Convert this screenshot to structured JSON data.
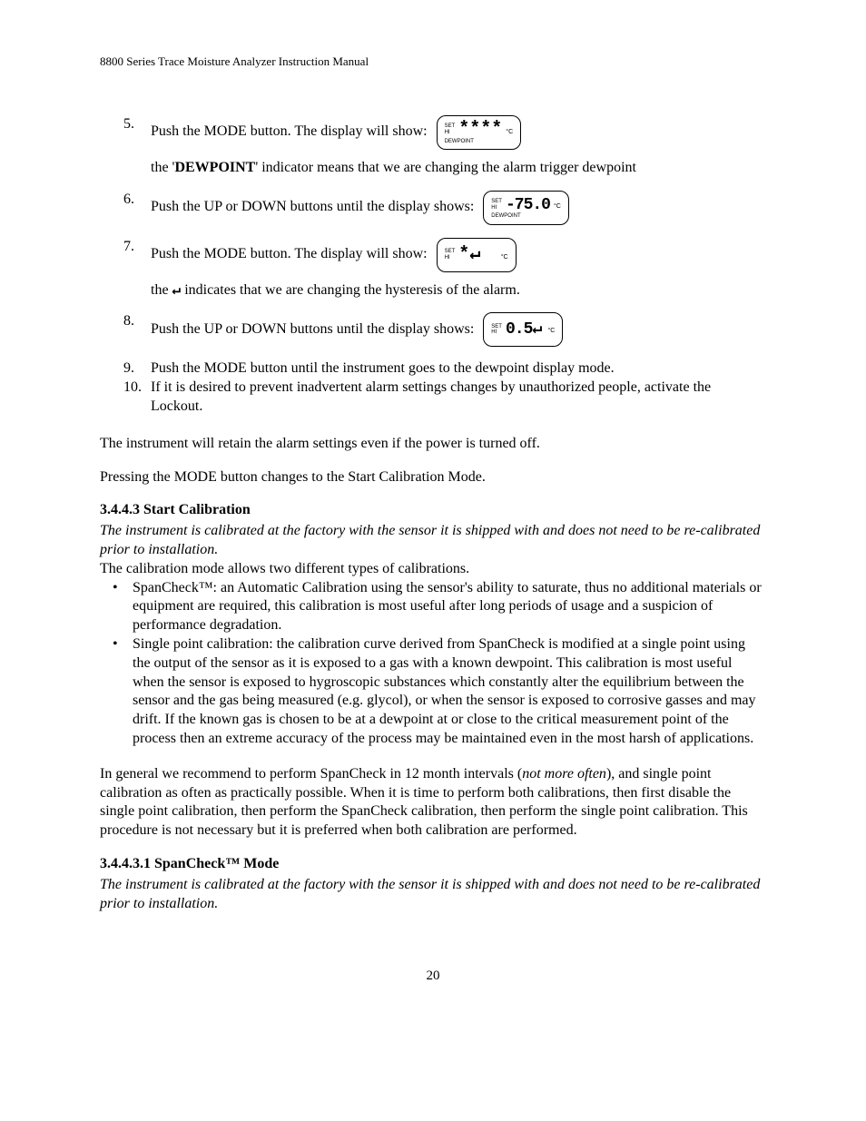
{
  "header": "8800 Series Trace Moisture Analyzer Instruction Manual",
  "steps": [
    {
      "num": "5.",
      "pre": "Push the MODE button. The display will show:",
      "lcd": {
        "set": "SET",
        "hi": "HI",
        "main": "****",
        "unit": "°C",
        "bottom": "DEWPOINT"
      },
      "after_html": "the '<b>DEWPOINT</b>' indicator means that we are changing the alarm trigger dewpoint"
    },
    {
      "num": "6.",
      "pre": "Push the UP or DOWN buttons until the display shows:",
      "lcd": {
        "set": "SET",
        "hi": "HI",
        "main": "-75.0",
        "unit": "°C",
        "bottom": "DEWPOINT"
      }
    },
    {
      "num": "7.",
      "pre": "Push the MODE button. The display will show:",
      "lcd": {
        "set": "SET",
        "hi": "HI",
        "main": "*↵",
        "unit": "°C"
      },
      "after_html": "the <span class='hyst'>↵</span> indicates that we are changing the hysteresis of the alarm."
    },
    {
      "num": "8.",
      "pre": "Push the UP or DOWN buttons until the display shows:",
      "lcd": {
        "set": "SET",
        "hi": "HI",
        "main": "0.5↵",
        "unit": "°C"
      }
    },
    {
      "num": "9.",
      "pre": "Push the MODE button until the instrument goes to the dewpoint display mode."
    },
    {
      "num": "10.",
      "pre": "If it is desired to prevent inadvertent alarm settings changes by unauthorized people, activate the Lockout."
    }
  ],
  "para1": "The instrument will retain the alarm settings even if the power is turned off.",
  "para2": "Pressing the MODE button changes to the Start Calibration Mode.",
  "sec1_h": "3.4.4.3 Start Calibration",
  "sec1_italic": "The instrument is calibrated at the factory with the sensor it is shipped with and does not need to be re-calibrated prior to installation.",
  "sec1_p": "The calibration mode allows two different types of calibrations.",
  "bullets": [
    "SpanCheck™: an Automatic Calibration using the sensor's ability to saturate, thus no additional materials or equipment are required, this calibration is most useful after long periods of usage and a suspicion of performance degradation.",
    "Single point calibration: the calibration curve derived from SpanCheck is modified at a single point using the output of the sensor as it is exposed to a gas with a known dewpoint. This calibration is most useful when the sensor is exposed to hygroscopic substances which constantly alter the equilibrium between the sensor and the gas being measured (e.g. glycol), or when the sensor is exposed to corrosive gasses and may drift. If the known gas is chosen to be at a dewpoint at or close to the critical measurement point of the process then an extreme accuracy of the process may be maintained even in the most harsh of applications."
  ],
  "para3_html": "In general we recommend to perform SpanCheck in 12 month intervals (<i>not more often</i>), and single point calibration as often as practically possible. When it is time to perform both calibrations, then first disable the single point calibration, then perform the SpanCheck calibration, then perform the single point calibration. This procedure is not necessary but it is preferred when both calibration are performed.",
  "sec2_h": "3.4.4.3.1 SpanCheck™ Mode",
  "sec2_italic": "The instrument is calibrated at the factory with the sensor it is shipped with and does not need to be re-calibrated prior to installation.",
  "pagenum": "20"
}
